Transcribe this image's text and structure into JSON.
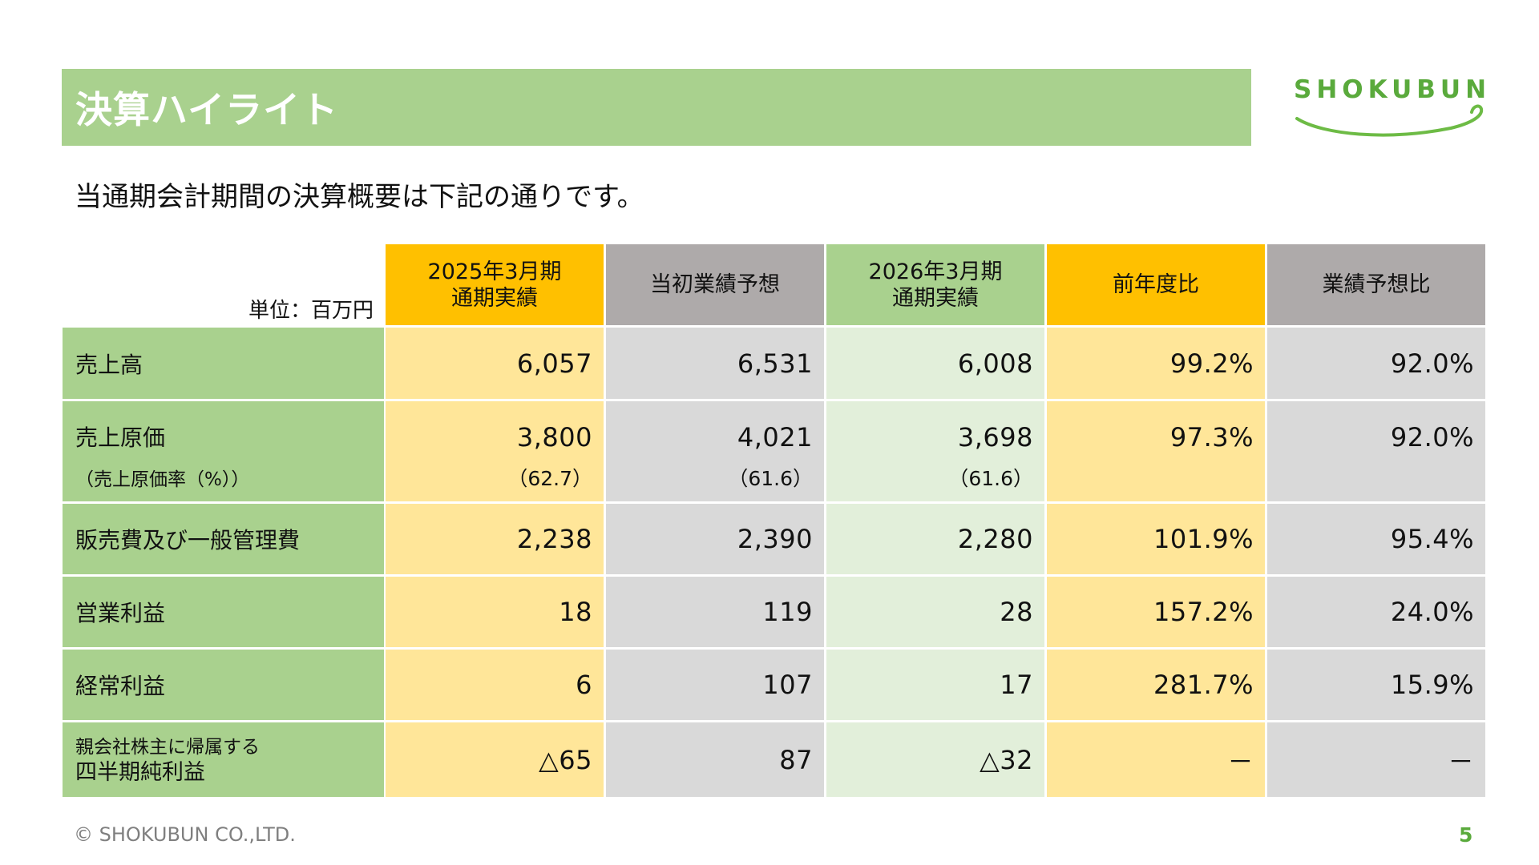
{
  "title": "決算ハイライト",
  "logo_text": "SHOKUBUN",
  "subtitle": "当通期会計期間の決算概要は下記の通りです。",
  "unit": "単位：百万円",
  "headers": [
    {
      "line1": "2025年3月期",
      "line2": "通期実績"
    },
    {
      "line1": "当初業績予想",
      "line2": ""
    },
    {
      "line1": "2026年3月期",
      "line2": "通期実績"
    },
    {
      "line1": "前年度比",
      "line2": ""
    },
    {
      "line1": "業績予想比",
      "line2": ""
    }
  ],
  "rows": [
    {
      "label": "売上高",
      "values": [
        "6,057",
        "6,531",
        "6,008",
        "99.2%",
        "92.0%"
      ]
    },
    {
      "label": "売上原価",
      "values": [
        "3,800",
        "4,021",
        "3,698",
        "97.3%",
        "92.0%"
      ],
      "sub_label": "（売上原価率（%））",
      "sub_values": [
        "（62.7）",
        "（61.6）",
        "（61.6）",
        "",
        ""
      ]
    },
    {
      "label": "販売費及び一般管理費",
      "values": [
        "2,238",
        "2,390",
        "2,280",
        "101.9%",
        "95.4%"
      ]
    },
    {
      "label": "営業利益",
      "values": [
        "18",
        "119",
        "28",
        "157.2%",
        "24.0%"
      ]
    },
    {
      "label": "経常利益",
      "values": [
        "6",
        "107",
        "17",
        "281.7%",
        "15.9%"
      ]
    },
    {
      "label_line1": "親会社株主に帰属する",
      "label_line2": "四半期純利益",
      "values": [
        "△65",
        "87",
        "△32",
        "－",
        "－"
      ]
    }
  ],
  "footer": {
    "copyright": "© SHOKUBUN CO.,LTD.",
    "page": "5"
  },
  "colors": {
    "title_bar": "#a9d18e",
    "header_yellow": "#ffc000",
    "header_gray": "#aeaaaa",
    "cell_yellow": "#ffe699",
    "cell_gray": "#d9d9d9",
    "cell_green": "#e2efda",
    "brand_green": "#5aaa3c"
  }
}
